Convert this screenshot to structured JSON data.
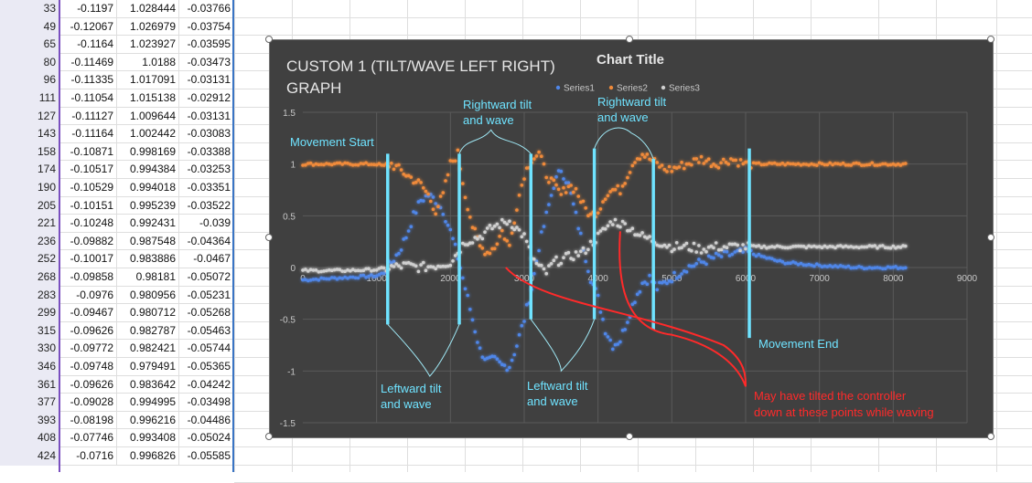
{
  "spreadsheet": {
    "rows": [
      {
        "n": "33",
        "a": "-0.1197",
        "b": "1.028444",
        "c": "-0.03766"
      },
      {
        "n": "49",
        "a": "-0.12067",
        "b": "1.026979",
        "c": "-0.03754"
      },
      {
        "n": "65",
        "a": "-0.1164",
        "b": "1.023927",
        "c": "-0.03595"
      },
      {
        "n": "80",
        "a": "-0.11469",
        "b": "1.0188",
        "c": "-0.03473"
      },
      {
        "n": "96",
        "a": "-0.11335",
        "b": "1.017091",
        "c": "-0.03131"
      },
      {
        "n": "111",
        "a": "-0.11054",
        "b": "1.015138",
        "c": "-0.02912"
      },
      {
        "n": "127",
        "a": "-0.11127",
        "b": "1.009644",
        "c": "-0.03131"
      },
      {
        "n": "143",
        "a": "-0.11164",
        "b": "1.002442",
        "c": "-0.03083"
      },
      {
        "n": "158",
        "a": "-0.10871",
        "b": "0.998169",
        "c": "-0.03388"
      },
      {
        "n": "174",
        "a": "-0.10517",
        "b": "0.994384",
        "c": "-0.03253"
      },
      {
        "n": "190",
        "a": "-0.10529",
        "b": "0.994018",
        "c": "-0.03351"
      },
      {
        "n": "205",
        "a": "-0.10151",
        "b": "0.995239",
        "c": "-0.03522"
      },
      {
        "n": "221",
        "a": "-0.10248",
        "b": "0.992431",
        "c": "-0.039"
      },
      {
        "n": "236",
        "a": "-0.09882",
        "b": "0.987548",
        "c": "-0.04364"
      },
      {
        "n": "252",
        "a": "-0.10017",
        "b": "0.983886",
        "c": "-0.0467"
      },
      {
        "n": "268",
        "a": "-0.09858",
        "b": "0.98181",
        "c": "-0.05072"
      },
      {
        "n": "283",
        "a": "-0.0976",
        "b": "0.980956",
        "c": "-0.05231"
      },
      {
        "n": "299",
        "a": "-0.09467",
        "b": "0.980712",
        "c": "-0.05268"
      },
      {
        "n": "315",
        "a": "-0.09626",
        "b": "0.982787",
        "c": "-0.05463"
      },
      {
        "n": "330",
        "a": "-0.09772",
        "b": "0.982421",
        "c": "-0.05744"
      },
      {
        "n": "346",
        "a": "-0.09748",
        "b": "0.979491",
        "c": "-0.05365"
      },
      {
        "n": "361",
        "a": "-0.09626",
        "b": "0.983642",
        "c": "-0.04242"
      },
      {
        "n": "377",
        "a": "-0.09028",
        "b": "0.994995",
        "c": "-0.03498"
      },
      {
        "n": "393",
        "a": "-0.08198",
        "b": "0.996216",
        "c": "-0.04486"
      },
      {
        "n": "408",
        "a": "-0.07746",
        "b": "0.993408",
        "c": "-0.05024"
      },
      {
        "n": "424",
        "a": "-0.0716",
        "b": "0.996826",
        "c": "-0.05585"
      }
    ]
  },
  "chart_data": {
    "type": "scatter",
    "title": "Chart Title",
    "annotation_title": "CUSTOM 1 (TILT/WAVE LEFT RIGHT) GRAPH",
    "xlim": [
      0,
      9000
    ],
    "ylim": [
      -1.5,
      1.5
    ],
    "x_ticks": [
      "0",
      "1000",
      "2000",
      "3000",
      "4000",
      "5000",
      "6000",
      "7000",
      "8000",
      "9000"
    ],
    "y_ticks": [
      "1.5",
      "1",
      "0.5",
      "0",
      "-0.5",
      "-1",
      "-1.5"
    ],
    "legend": [
      "Series1",
      "Series2",
      "Series3"
    ],
    "series": [
      {
        "name": "Series1",
        "color": "#4f86e8",
        "points": [
          [
            0,
            -0.12
          ],
          [
            500,
            -0.1
          ],
          [
            1000,
            -0.08
          ],
          [
            1100,
            -0.05
          ],
          [
            1200,
            0.05
          ],
          [
            1300,
            0.15
          ],
          [
            1400,
            0.3
          ],
          [
            1500,
            0.5
          ],
          [
            1600,
            0.65
          ],
          [
            1700,
            0.7
          ],
          [
            1800,
            0.65
          ],
          [
            1900,
            0.55
          ],
          [
            2000,
            0.35
          ],
          [
            2100,
            0.1
          ],
          [
            2200,
            -0.2
          ],
          [
            2300,
            -0.5
          ],
          [
            2400,
            -0.8
          ],
          [
            2500,
            -0.9
          ],
          [
            2600,
            -0.9
          ],
          [
            2700,
            -0.95
          ],
          [
            2800,
            -0.95
          ],
          [
            2900,
            -0.75
          ],
          [
            3000,
            -0.5
          ],
          [
            3100,
            -0.2
          ],
          [
            3200,
            0.2
          ],
          [
            3300,
            0.5
          ],
          [
            3400,
            0.8
          ],
          [
            3500,
            0.95
          ],
          [
            3600,
            0.8
          ],
          [
            3700,
            0.5
          ],
          [
            3800,
            0.2
          ],
          [
            3900,
            -0.1
          ],
          [
            4000,
            -0.3
          ],
          [
            4100,
            -0.6
          ],
          [
            4200,
            -0.75
          ],
          [
            4300,
            -0.7
          ],
          [
            4400,
            -0.5
          ],
          [
            4500,
            -0.3
          ],
          [
            4600,
            -0.15
          ],
          [
            4700,
            -0.1
          ],
          [
            4800,
            -0.2
          ],
          [
            4900,
            -0.15
          ],
          [
            5000,
            -0.1
          ],
          [
            5200,
            0
          ],
          [
            5400,
            0.05
          ],
          [
            5600,
            0.1
          ],
          [
            6000,
            0.15
          ],
          [
            6500,
            0.05
          ],
          [
            7000,
            0.02
          ],
          [
            7500,
            0
          ],
          [
            8000,
            0
          ],
          [
            8200,
            0
          ]
        ]
      },
      {
        "name": "Series2",
        "color": "#ef8a3a",
        "points": [
          [
            0,
            1
          ],
          [
            500,
            1
          ],
          [
            1000,
            1
          ],
          [
            1100,
            0.98
          ],
          [
            1200,
            1.0
          ],
          [
            1300,
            0.95
          ],
          [
            1400,
            0.9
          ],
          [
            1500,
            0.85
          ],
          [
            1600,
            0.8
          ],
          [
            1700,
            0.7
          ],
          [
            1800,
            0.55
          ],
          [
            1900,
            0.7
          ],
          [
            2000,
            1.0
          ],
          [
            2100,
            1.1
          ],
          [
            2200,
            0.7
          ],
          [
            2300,
            0.4
          ],
          [
            2400,
            0.2
          ],
          [
            2500,
            0.15
          ],
          [
            2600,
            0.2
          ],
          [
            2700,
            0.35
          ],
          [
            2800,
            0.2
          ],
          [
            2900,
            0.6
          ],
          [
            3000,
            0.9
          ],
          [
            3100,
            1.05
          ],
          [
            3200,
            1.1
          ],
          [
            3300,
            0.9
          ],
          [
            3400,
            0.8
          ],
          [
            3500,
            0.7
          ],
          [
            3600,
            0.8
          ],
          [
            3700,
            0.75
          ],
          [
            3800,
            0.6
          ],
          [
            3900,
            0.5
          ],
          [
            4000,
            0.55
          ],
          [
            4100,
            0.7
          ],
          [
            4200,
            0.75
          ],
          [
            4300,
            0.75
          ],
          [
            4400,
            0.9
          ],
          [
            4500,
            1.05
          ],
          [
            4600,
            1.1
          ],
          [
            4700,
            1.05
          ],
          [
            4800,
            1.0
          ],
          [
            4900,
            0.95
          ],
          [
            5000,
            0.95
          ],
          [
            5200,
            1.0
          ],
          [
            5400,
            1.05
          ],
          [
            5600,
            1.0
          ],
          [
            5800,
            1.05
          ],
          [
            6000,
            1.0
          ],
          [
            6500,
            1.0
          ],
          [
            7000,
            1.0
          ],
          [
            7500,
            1.0
          ],
          [
            8000,
            1.0
          ],
          [
            8200,
            1.0
          ]
        ]
      },
      {
        "name": "Series3",
        "color": "#cfcfcf",
        "points": [
          [
            0,
            -0.03
          ],
          [
            500,
            -0.03
          ],
          [
            1000,
            -0.02
          ],
          [
            1200,
            0.0
          ],
          [
            1400,
            0.02
          ],
          [
            1600,
            0.0
          ],
          [
            1800,
            0.02
          ],
          [
            2000,
            0.05
          ],
          [
            2200,
            0.25
          ],
          [
            2400,
            0.3
          ],
          [
            2600,
            0.4
          ],
          [
            2800,
            0.45
          ],
          [
            3000,
            0.3
          ],
          [
            3100,
            0.1
          ],
          [
            3200,
            0.0
          ],
          [
            3300,
            -0.05
          ],
          [
            3400,
            0.05
          ],
          [
            3600,
            0.1
          ],
          [
            3800,
            0.15
          ],
          [
            4000,
            0.3
          ],
          [
            4200,
            0.45
          ],
          [
            4400,
            0.4
          ],
          [
            4600,
            0.3
          ],
          [
            4800,
            0.25
          ],
          [
            5000,
            0.2
          ],
          [
            5200,
            0.2
          ],
          [
            5400,
            0.18
          ],
          [
            5600,
            0.2
          ],
          [
            6000,
            0.2
          ],
          [
            6500,
            0.2
          ],
          [
            7000,
            0.2
          ],
          [
            7500,
            0.2
          ],
          [
            8000,
            0.2
          ],
          [
            8200,
            0.2
          ]
        ]
      }
    ],
    "vertical_markers": [
      {
        "x": 1150,
        "y_top": 1.1,
        "y_bottom": -0.55
      },
      {
        "x": 2120,
        "y_top": 1.1,
        "y_bottom": -0.55
      },
      {
        "x": 3090,
        "y_top": 1.1,
        "y_bottom": -0.5
      },
      {
        "x": 3950,
        "y_top": 1.15,
        "y_bottom": -0.5
      },
      {
        "x": 4750,
        "y_top": 1.05,
        "y_bottom": -0.6
      },
      {
        "x": 6050,
        "y_top": 1.15,
        "y_bottom": -0.68
      }
    ],
    "annotations": {
      "movement_start": "Movement Start",
      "movement_end": "Movement End",
      "rightward_tilt_1a": "Rightward tilt",
      "rightward_tilt_1b": "and wave",
      "rightward_tilt_2a": "Rightward tilt",
      "rightward_tilt_2b": "and wave",
      "leftward_tilt_1a": "Leftward tilt",
      "leftward_tilt_1b": "and wave",
      "leftward_tilt_2a": "Leftward tilt",
      "leftward_tilt_2b": "and wave",
      "note_line1": "May have tilted the controller",
      "note_line2": "down at these points while waving"
    }
  },
  "colors": {
    "chart_bg": "#404040",
    "grid": "#5a5a5a",
    "marker": "#6fe3ff",
    "note": "#ff2a2a"
  }
}
